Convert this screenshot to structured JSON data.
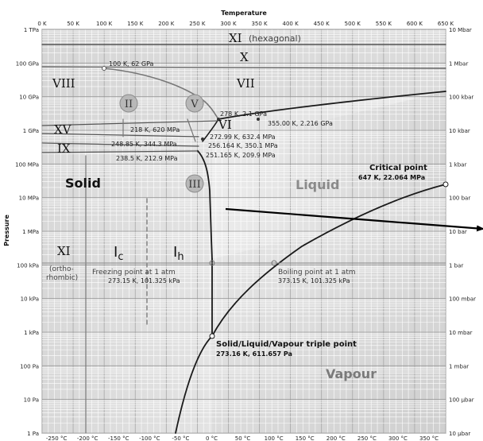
{
  "axes": {
    "x_title": "Temperature",
    "y_title": "Pressure",
    "kelvin_ticks": [
      "0 K",
      "50 K",
      "100 K",
      "150 K",
      "200 K",
      "250 K",
      "300 K",
      "350 K",
      "400 K",
      "450 K",
      "500 K",
      "550 K",
      "600 K",
      "650 K"
    ],
    "celsius_ticks": [
      "-250 °C",
      "-200 °C",
      "-150 °C",
      "-100 °C",
      "-50 °C",
      "0 °C",
      "50 °C",
      "100 °C",
      "150 °C",
      "200 °C",
      "250 °C",
      "300 °C",
      "350 °C"
    ],
    "pa_ticks": [
      "1 TPa",
      "100 GPa",
      "10 GPa",
      "1 GPa",
      "100 MPa",
      "10 MPa",
      "1 MPa",
      "100 kPa",
      "10 kPa",
      "1 kPa",
      "100 Pa",
      "10 Pa",
      "1 Pa"
    ],
    "bar_ticks": [
      "10 Mbar",
      "1 Mbar",
      "100 kbar",
      "10 kbar",
      "1 kbar",
      "100 bar",
      "10 bar",
      "1 bar",
      "100 mbar",
      "10 mbar",
      "1 mbar",
      "100 µbar",
      "10 µbar"
    ]
  },
  "phases": {
    "xi_hex": "XI",
    "xi_hex_note": "(hexagonal)",
    "x": "X",
    "vii": "VII",
    "viii": "VIII",
    "ii": "II",
    "v": "V",
    "vi": "VI",
    "xv": "XV",
    "ix": "IX",
    "iii": "III",
    "solid": "Solid",
    "liquid": "Liquid",
    "vapour": "Vapour",
    "xi_ortho": "XI",
    "xi_ortho_note1": "(ortho-",
    "xi_ortho_note2": "rhombic)",
    "ic_main": "I",
    "ic_sub": "c",
    "ih_main": "I",
    "ih_sub": "h"
  },
  "annotations": {
    "p_100k_62gpa": "100 K, 62 GPa",
    "p_278k": "278 K, 2.1 GPa",
    "p_355k": "355.00 K, 2.216 GPa",
    "p_218k": "218 K, 620 MPa",
    "p_272k": "272.99 K, 632.4 MPa",
    "p_248k": "248.85 K, 344.3 MPa",
    "p_256k": "256.164 K, 350.1 MPa",
    "p_238k": "238.5 K, 212.9 MPa",
    "p_251k": "251.165 K, 209.9 MPa",
    "critical_title": "Critical point",
    "critical_value": "647 K, 22.064 MPa",
    "freezing_title": "Freezing point at 1 atm",
    "freezing_value": "273.15 K, 101.325 kPa",
    "boiling_title": "Boiling point at 1 atm",
    "boiling_value": "373.15 K, 101.325 kPa",
    "triple_title": "Solid/Liquid/Vapour triple point",
    "triple_value": "273.16 K, 611.657 Pa"
  },
  "colors": {
    "background": "#e6e6e6",
    "grid_minor": "#ffffff",
    "grid_major": "#9a9a9a",
    "curve": "#1a1a1a",
    "curve_light": "#7a7a7a",
    "circle_fill": "#b8b8b8",
    "circle_stroke": "#8c8c8c",
    "liquid_text": "#8a8a8a",
    "vapour_text": "#7a7a7a"
  }
}
